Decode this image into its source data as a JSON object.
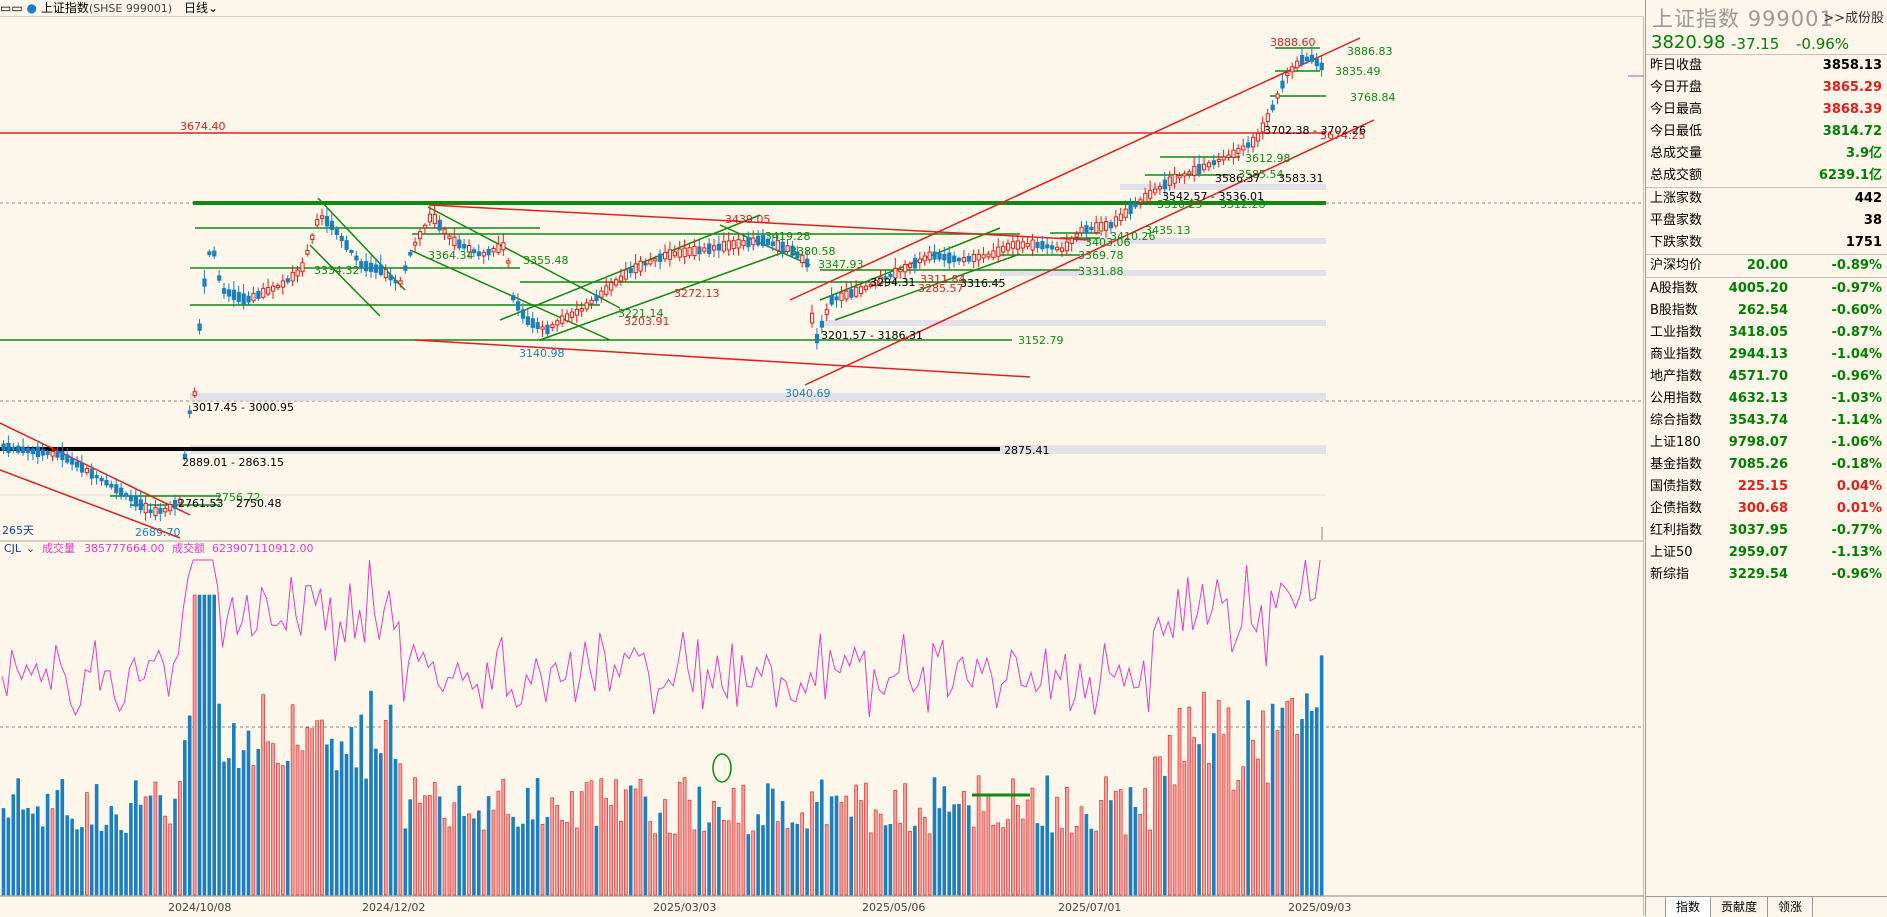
{
  "topbar": {
    "title": "上证指数",
    "symbol": "(SHSE 999001)",
    "period": "日线"
  },
  "colors": {
    "up": "#e0201c",
    "down": "#1a7fc1",
    "green_line": "#008000",
    "red_line": "#e02020",
    "volume_ma": "#e040c0"
  },
  "main_chart": {
    "annotations": {
      "high_3674": "3674.40",
      "p3888": "3888.60",
      "p3886": "3886.83",
      "p3835": "3835.49",
      "p3768": "3768.84",
      "p3702": "3702.38 - 3702.26",
      "p3674b": "3674.25",
      "p3612": "3612.98",
      "p3583": "3583.31",
      "p3586": "3586.37",
      "p3585": "3585.54",
      "p3542": "3542.57 - 3536.01",
      "p3510": "3510.25",
      "p3512": "3512.28",
      "p3439": "3439.05",
      "p3419": "3419.28",
      "p3435": "3435.13",
      "p3410": "3410.26",
      "p3403": "3403.06",
      "p3380": "3380.58",
      "p3369": "3369.78",
      "p3347": "3347.93",
      "p3355": "3355.48",
      "p3331": "3331.88",
      "p3334": "3334.32",
      "p3364": "3364.34",
      "p3316": "3316.45",
      "p3285": "3285.57",
      "p3294": "3294.31",
      "p3311": "3311.84",
      "p3272": "3272.13",
      "p3221": "3221.14",
      "p3203": "3203.91",
      "p3201": "3201.57 - 3186.31",
      "p3152": "3152.79",
      "p3140": "3140.98",
      "p3040": "3040.69",
      "p3017": "3017.45 - 3000.95",
      "p2889": "2889.01 - 2863.15",
      "p2875": "2875.41",
      "p2756": "2756.72",
      "p2761": "2761.53",
      "p2750": "2750.48",
      "p2689": "2689.70",
      "days": "265天"
    }
  },
  "volume": {
    "label_name": "CJL",
    "vol_label": "成交量",
    "vol_value": "385777664.00",
    "amt_label": "成交额",
    "amt_value": "623907110912.00"
  },
  "x_axis": [
    "2024/10/08",
    "2024/12/02",
    "2025/03/03",
    "2025/05/06",
    "2025/07/01",
    "2025/09/03"
  ],
  "right_panel": {
    "name": "上证指数",
    "code": "999001",
    "more": ">>成份股",
    "last": "3820.98",
    "change": "-37.15",
    "change_pct": "-0.96%",
    "stats": [
      {
        "label": "昨日收盘",
        "value": "3858.13",
        "color": "k"
      },
      {
        "label": "今日开盘",
        "value": "3865.29",
        "color": "r"
      },
      {
        "label": "今日最高",
        "value": "3868.39",
        "color": "r"
      },
      {
        "label": "今日最低",
        "value": "3814.72",
        "color": "g"
      },
      {
        "label": "总成交量",
        "value": "3.9亿",
        "color": "g"
      },
      {
        "label": "总成交额",
        "value": "6239.1亿",
        "color": "g"
      }
    ],
    "breadth": [
      {
        "label": "上涨家数",
        "value": "442",
        "color": "k"
      },
      {
        "label": "平盘家数",
        "value": "38",
        "color": "k"
      },
      {
        "label": "下跌家数",
        "value": "1751",
        "color": "k"
      }
    ],
    "avg": {
      "label": "沪深均价",
      "value": "20.00",
      "pct": "-0.89%",
      "color": "g"
    },
    "indices": [
      {
        "label": "A股指数",
        "value": "4005.20",
        "pct": "-0.97%",
        "color": "g"
      },
      {
        "label": "B股指数",
        "value": "262.54",
        "pct": "-0.60%",
        "color": "g"
      },
      {
        "label": "工业指数",
        "value": "3418.05",
        "pct": "-0.87%",
        "color": "g"
      },
      {
        "label": "商业指数",
        "value": "2944.13",
        "pct": "-1.04%",
        "color": "g"
      },
      {
        "label": "地产指数",
        "value": "4571.70",
        "pct": "-0.96%",
        "color": "g"
      },
      {
        "label": "公用指数",
        "value": "4632.13",
        "pct": "-1.03%",
        "color": "g"
      },
      {
        "label": "综合指数",
        "value": "3543.74",
        "pct": "-1.14%",
        "color": "g"
      },
      {
        "label": "上证180",
        "value": "9798.07",
        "pct": "-1.06%",
        "color": "g"
      },
      {
        "label": "基金指数",
        "value": "7085.26",
        "pct": "-0.18%",
        "color": "g"
      },
      {
        "label": "国债指数",
        "value": "225.15",
        "pct": "0.04%",
        "color": "r"
      },
      {
        "label": "企债指数",
        "value": "300.68",
        "pct": "0.01%",
        "color": "r"
      },
      {
        "label": "红利指数",
        "value": "3037.95",
        "pct": "-0.77%",
        "color": "g"
      },
      {
        "label": "上证50",
        "value": "2959.07",
        "pct": "-1.13%",
        "color": "g"
      },
      {
        "label": "新综指",
        "value": "3229.54",
        "pct": "-0.96%",
        "color": "g"
      }
    ],
    "tabs": [
      "指数",
      "贡献度",
      "领涨"
    ]
  }
}
